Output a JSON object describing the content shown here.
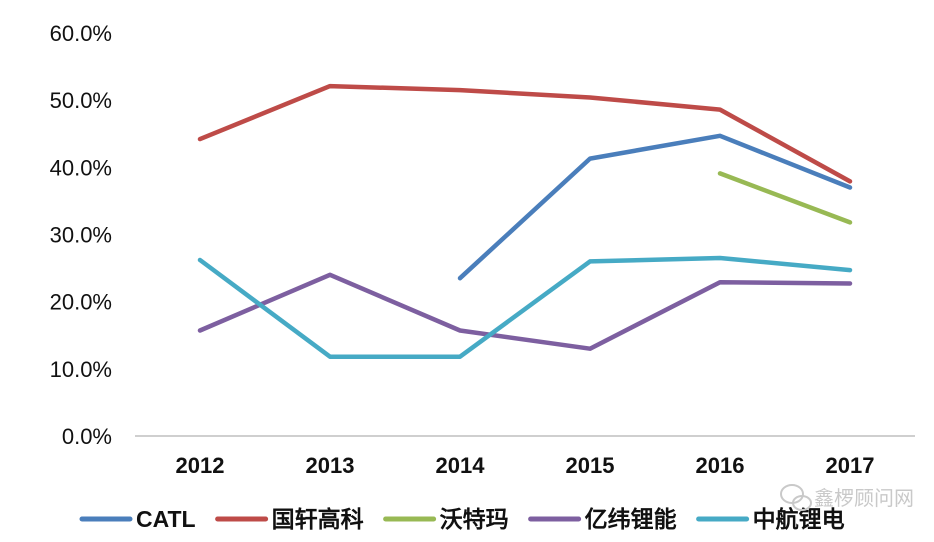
{
  "chart_data": {
    "type": "line",
    "title": "",
    "xlabel": "",
    "ylabel": "",
    "x": [
      "2012",
      "2013",
      "2014",
      "2015",
      "2016",
      "2017"
    ],
    "ylim": [
      0,
      60
    ],
    "y_ticks": [
      "0.0%",
      "10.0%",
      "20.0%",
      "30.0%",
      "40.0%",
      "50.0%",
      "60.0%"
    ],
    "grid": false,
    "legend_position": "bottom",
    "series": [
      {
        "name": "CATL",
        "color": "#4a7ebb",
        "values": [
          null,
          null,
          23.5,
          41.3,
          44.7,
          37.0
        ]
      },
      {
        "name": "国轩高科",
        "color": "#be4b48",
        "values": [
          44.2,
          52.1,
          51.5,
          50.4,
          48.6,
          37.9
        ]
      },
      {
        "name": "沃特玛",
        "color": "#98b954",
        "values": [
          null,
          null,
          null,
          null,
          39.1,
          31.8
        ]
      },
      {
        "name": "亿纬锂能",
        "color": "#7d5fa0",
        "values": [
          15.7,
          24.0,
          15.7,
          13.0,
          22.9,
          22.7
        ]
      },
      {
        "name": "中航锂电",
        "color": "#46aac5",
        "values": [
          26.2,
          11.8,
          11.8,
          26.0,
          26.5,
          24.7
        ]
      }
    ]
  },
  "watermark": {
    "icon": "wechat-icon",
    "text": "鑫椤顾问网"
  }
}
